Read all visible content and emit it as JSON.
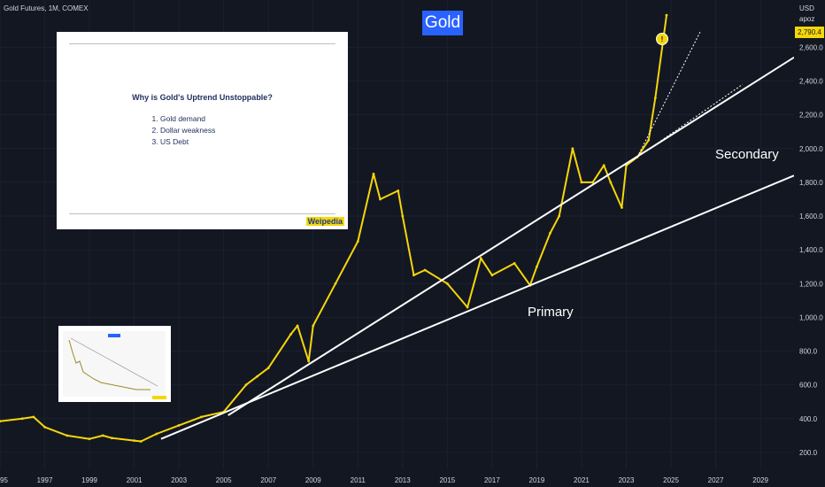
{
  "header": {
    "symbol": "Gold Futures, 1M, COMEX",
    "currency": "USD",
    "sub_currency": "apoz",
    "title": "Gold",
    "last_price": "2,790.4"
  },
  "card": {
    "question": "Why is Gold's Uptrend Unstoppable?",
    "reasons": [
      "Gold demand",
      "Dollar weakness",
      "US Debt"
    ],
    "brand": "Weipedia"
  },
  "labels": {
    "secondary": "Secondary",
    "primary": "Primary"
  },
  "colors": {
    "background": "#131722",
    "candles": "#f5d60a",
    "trendlines": "#ffffff",
    "title_badge": "#2962ff"
  },
  "chart_data": {
    "type": "line",
    "title": "Gold",
    "xlabel": "",
    "ylabel": "",
    "y_ticks": [
      200,
      400,
      600,
      800,
      1000,
      1200,
      1400,
      1600,
      1800,
      2000,
      2200,
      2400,
      2600
    ],
    "y_tick_labels": [
      "200.0",
      "400.0",
      "600.0",
      "800.0",
      "1,000.0",
      "1,200.0",
      "1,400.0",
      "1,600.0",
      "1,800.0",
      "2,000.0",
      "2,200.0",
      "2,400.0",
      "2,600.0"
    ],
    "x_ticks": [
      1995,
      1997,
      1999,
      2001,
      2003,
      2005,
      2007,
      2009,
      2011,
      2013,
      2015,
      2017,
      2019,
      2021,
      2023,
      2025,
      2027,
      2029
    ],
    "x_tick_labels": [
      "1995",
      "1997",
      "1999",
      "2001",
      "2003",
      "2005",
      "2007",
      "2009",
      "2011",
      "2013",
      "2015",
      "2017",
      "2019",
      "2021",
      "2023",
      "2025",
      "2027",
      "2029"
    ],
    "xlim": [
      1995,
      2030.5
    ],
    "ylim": [
      100,
      2880
    ],
    "series": [
      {
        "x": [
          1995,
          1996,
          1996.5,
          1997,
          1998,
          1999,
          1999.6,
          2000,
          2001,
          2001.3,
          2002,
          2003,
          2004,
          2005,
          2006,
          2006.5,
          2007,
          2008,
          2008.3,
          2008.8,
          2009,
          2010,
          2011,
          2011.7,
          2012,
          2012.8,
          2013,
          2013.5,
          2014,
          2015,
          2015.9,
          2016.5,
          2017,
          2018,
          2018.7,
          2019,
          2019.6,
          2020,
          2020.6,
          2021,
          2021.5,
          2022,
          2022.3,
          2022.8,
          2023,
          2023.5,
          2024,
          2024.3,
          2024.8
        ],
        "y": [
          385,
          400,
          410,
          350,
          300,
          280,
          300,
          285,
          270,
          265,
          310,
          360,
          410,
          440,
          600,
          650,
          700,
          900,
          950,
          740,
          950,
          1200,
          1450,
          1850,
          1700,
          1750,
          1600,
          1250,
          1280,
          1200,
          1060,
          1350,
          1250,
          1320,
          1190,
          1300,
          1500,
          1600,
          2000,
          1800,
          1800,
          1900,
          1800,
          1650,
          1900,
          1950,
          2050,
          2300,
          2790
        ]
      }
    ],
    "trendlines": [
      {
        "name": "Primary",
        "x": [
          2002.2,
          2030.5
        ],
        "y": [
          280,
          1840
        ]
      },
      {
        "name": "Secondary",
        "x": [
          2005.2,
          2030.5
        ],
        "y": [
          420,
          2540
        ]
      }
    ]
  }
}
